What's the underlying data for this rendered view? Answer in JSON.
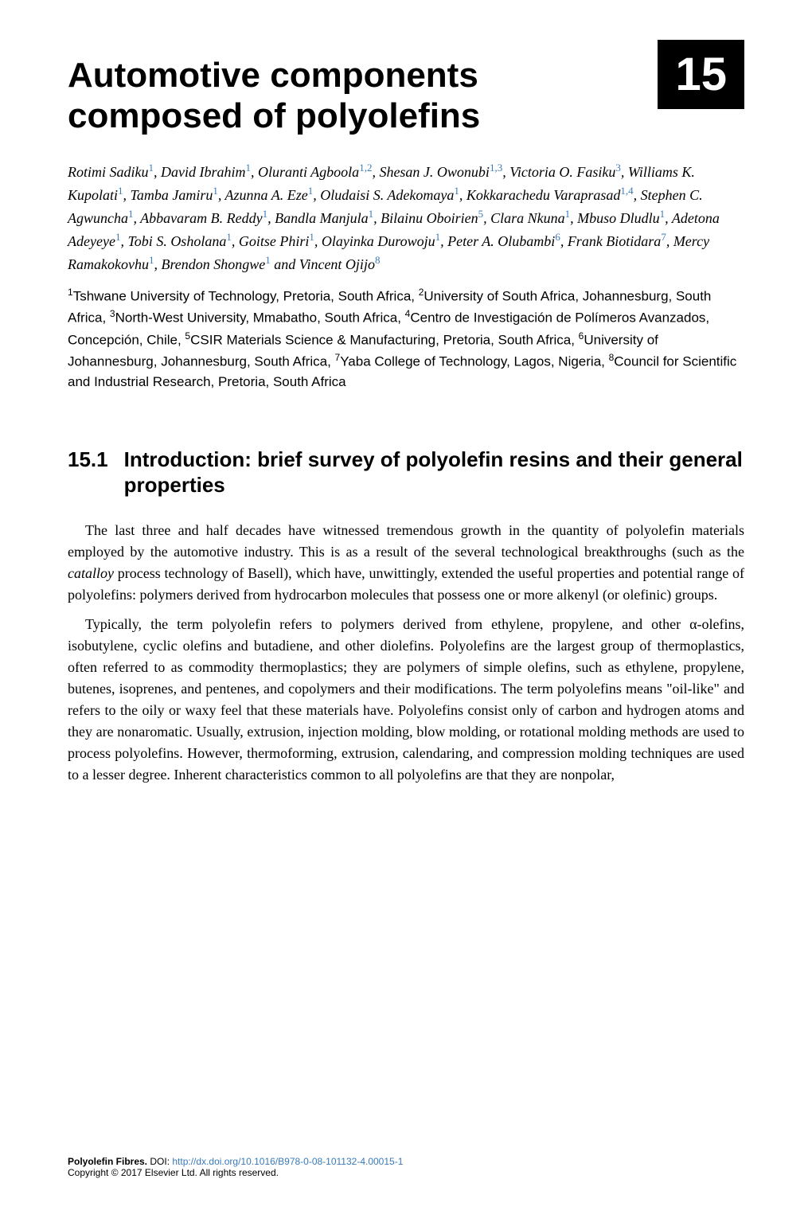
{
  "chapter": {
    "title": "Automotive components composed of polyolefins",
    "number": "15"
  },
  "authors_html_parts": {
    "a1": "Rotimi Sadiku",
    "a1_sup": "1",
    "a2": ", David Ibrahim",
    "a2_sup": "1",
    "a3": ", Oluranti Agboola",
    "a3_sup": "1,2",
    "a4": ", Shesan J. Owonubi",
    "a4_sup": "1,3",
    "a5": ", Victoria O. Fasiku",
    "a5_sup": "3",
    "a6": ", Williams K. Kupolati",
    "a6_sup": "1",
    "a7": ", Tamba Jamiru",
    "a7_sup": "1",
    "a8": ", Azunna A. Eze",
    "a8_sup": "1",
    "a9": ", Oludaisi S. Adekomaya",
    "a9_sup": "1",
    "a10": ", Kokkarachedu Varaprasad",
    "a10_sup": "1,4",
    "a11": ", Stephen C. Agwuncha",
    "a11_sup": "1",
    "a12": ", Abbavaram B. Reddy",
    "a12_sup": "1",
    "a13": ", Bandla Manjula",
    "a13_sup": "1",
    "a14": ", Bilainu Oboirien",
    "a14_sup": "5",
    "a15": ", Clara Nkuna",
    "a15_sup": "1",
    "a16": ", Mbuso Dludlu",
    "a16_sup": "1",
    "a17": ", Adetona Adeyeye",
    "a17_sup": "1",
    "a18": ", Tobi S. Osholana",
    "a18_sup": "1",
    "a19": ", Goitse Phiri",
    "a19_sup": "1",
    "a20": ", Olayinka Durowoju",
    "a20_sup": "1",
    "a21": ", Peter A. Olubambi",
    "a21_sup": "6",
    "a22": ", Frank Biotidara",
    "a22_sup": "7",
    "a23": ", Mercy Ramakokovhu",
    "a23_sup": "1",
    "a24": ", Brendon Shongwe",
    "a24_sup": "1",
    "a25": " and Vincent Ojijo",
    "a25_sup": "8"
  },
  "affiliations": {
    "s1": "1",
    "t1": "Tshwane University of Technology, Pretoria, South Africa, ",
    "s2": "2",
    "t2": "University of South Africa, Johannesburg, South Africa, ",
    "s3": "3",
    "t3": "North-West University, Mmabatho, South Africa, ",
    "s4": "4",
    "t4": "Centro de Investigación de Polímeros Avanzados, Concepción, Chile, ",
    "s5": "5",
    "t5": "CSIR Materials Science & Manufacturing, Pretoria, South Africa, ",
    "s6": "6",
    "t6": "University of Johannesburg, Johannesburg, South Africa, ",
    "s7": "7",
    "t7": "Yaba College of Technology, Lagos, Nigeria, ",
    "s8": "8",
    "t8": "Council for Scientific and Industrial Research, Pretoria, South Africa"
  },
  "section": {
    "number": "15.1",
    "title": "Introduction: brief survey of polyolefin resins and their general properties"
  },
  "paragraphs": {
    "p1_a": "The last three and half decades have witnessed tremendous growth in the quantity of polyolefin materials employed by the automotive industry. This is as a result of the several technological breakthroughs (such as the ",
    "p1_em": "catalloy",
    "p1_b": " process technology of Basell), which have, unwittingly, extended the useful properties and potential range of polyolefins: polymers derived from hydrocarbon molecules that possess one or more alkenyl (or olefinic) groups.",
    "p2": "Typically, the term polyolefin refers to polymers derived from ethylene, propylene, and other α-olefins, isobutylene, cyclic olefins and butadiene, and other diolefins. Polyolefins are the largest group of thermoplastics, often referred to as commodity thermoplastics; they are polymers of simple olefins, such as ethylene, propylene, butenes, isoprenes, and pentenes, and copolymers and their modifications. The term polyolefins means \"oil-like\" and refers to the oily or waxy feel that these materials have. Polyolefins consist only of carbon and hydrogen atoms and they are nonaromatic. Usually, extrusion, injection molding, blow molding, or rotational molding methods are used to process polyolefins. However, thermoforming, extrusion, calendaring, and compression molding techniques are used to a lesser degree. Inherent characteristics common to all polyolefins are that they are nonpolar,"
  },
  "footer": {
    "line1_bold": "Polyolefin Fibres.",
    "line1_plain": " DOI: ",
    "line1_link": "http://dx.doi.org/10.1016/B978-0-08-101132-4.00015-1",
    "line2": "Copyright © 2017 Elsevier Ltd. All rights reserved."
  },
  "colors": {
    "text": "#000000",
    "sup_link": "#3a7ab8",
    "background": "#ffffff",
    "number_box_bg": "#000000",
    "number_box_fg": "#ffffff"
  },
  "typography": {
    "title_font": "Arial",
    "title_size_pt": 33,
    "body_font": "Georgia",
    "body_size_pt": 13.5,
    "section_size_pt": 19.5,
    "chapter_num_size_pt": 44
  }
}
